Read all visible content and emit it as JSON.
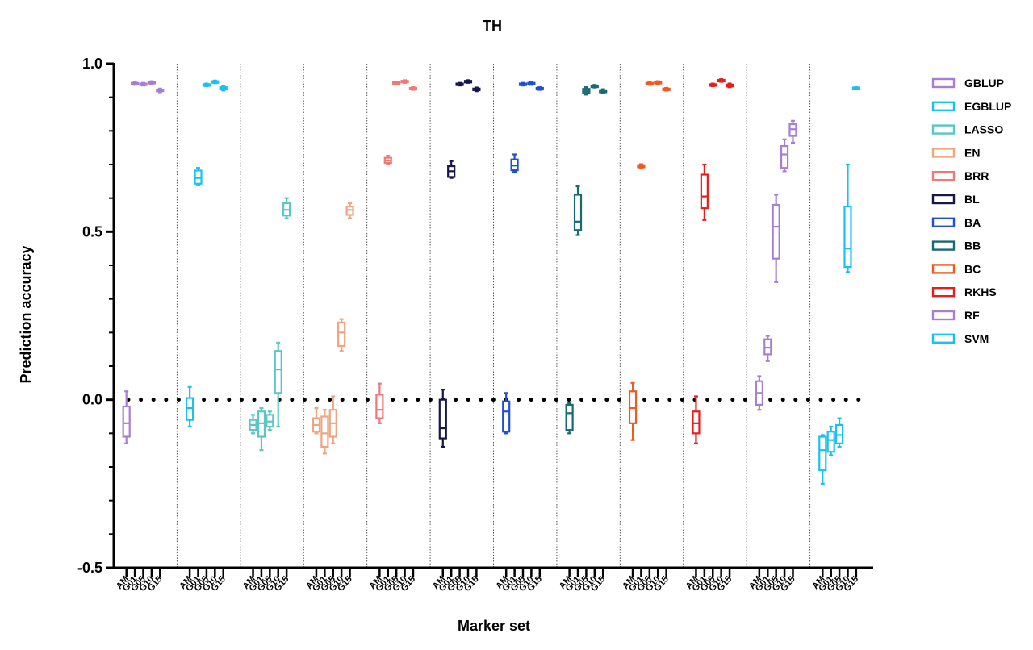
{
  "chart_data": {
    "type": "box",
    "title": "TH",
    "xlabel": "Marker set",
    "ylabel": "Prediction accuracy",
    "ylim": [
      -0.5,
      1.0
    ],
    "yticks": [
      "-0.5",
      "0.0",
      "0.5",
      "1.0"
    ],
    "ytick_values": [
      -0.5,
      0.0,
      0.5,
      1.0
    ],
    "reference_line": 0.0,
    "legend_position": "right",
    "marker_sets": [
      "AM",
      "G01",
      "G05",
      "G10",
      "G15"
    ],
    "series": [
      {
        "name": "GBLUP",
        "color": "#a67fd4",
        "boxes": [
          {
            "min": -0.13,
            "q1": -0.11,
            "median": -0.07,
            "q3": -0.02,
            "max": 0.025
          },
          {
            "min": 0.937,
            "q1": 0.939,
            "median": 0.941,
            "q3": 0.943,
            "max": 0.945
          },
          {
            "min": 0.935,
            "q1": 0.937,
            "median": 0.939,
            "q3": 0.941,
            "max": 0.943
          },
          {
            "min": 0.94,
            "q1": 0.942,
            "median": 0.944,
            "q3": 0.946,
            "max": 0.948
          },
          {
            "min": 0.915,
            "q1": 0.918,
            "median": 0.92,
            "q3": 0.923,
            "max": 0.926
          }
        ]
      },
      {
        "name": "EGBLUP",
        "color": "#19c1f0",
        "boxes": [
          {
            "min": -0.08,
            "q1": -0.06,
            "median": -0.025,
            "q3": 0.005,
            "max": 0.038
          },
          {
            "min": 0.638,
            "q1": 0.643,
            "median": 0.66,
            "q3": 0.682,
            "max": 0.69
          },
          {
            "min": 0.933,
            "q1": 0.935,
            "median": 0.937,
            "q3": 0.939,
            "max": 0.941
          },
          {
            "min": 0.942,
            "q1": 0.944,
            "median": 0.946,
            "q3": 0.948,
            "max": 0.95
          },
          {
            "min": 0.92,
            "q1": 0.923,
            "median": 0.926,
            "q3": 0.93,
            "max": 0.933
          }
        ]
      },
      {
        "name": "LASSO",
        "color": "#5cc6c6",
        "boxes": [
          {
            "min": -0.1,
            "q1": -0.09,
            "median": -0.075,
            "q3": -0.06,
            "max": -0.045
          },
          {
            "min": -0.15,
            "q1": -0.11,
            "median": -0.07,
            "q3": -0.035,
            "max": -0.025
          },
          {
            "min": -0.09,
            "q1": -0.08,
            "median": -0.065,
            "q3": -0.045,
            "max": -0.035
          },
          {
            "min": -0.08,
            "q1": 0.02,
            "median": 0.09,
            "q3": 0.145,
            "max": 0.17
          },
          {
            "min": 0.54,
            "q1": 0.548,
            "median": 0.565,
            "q3": 0.585,
            "max": 0.6
          }
        ]
      },
      {
        "name": "EN",
        "color": "#f0a582",
        "boxes": [
          {
            "min": -0.1,
            "q1": -0.095,
            "median": -0.075,
            "q3": -0.055,
            "max": -0.025
          },
          {
            "min": -0.16,
            "q1": -0.14,
            "median": -0.1,
            "q3": -0.05,
            "max": -0.03
          },
          {
            "min": -0.13,
            "q1": -0.11,
            "median": -0.07,
            "q3": -0.03,
            "max": 0.01
          },
          {
            "min": 0.145,
            "q1": 0.16,
            "median": 0.2,
            "q3": 0.23,
            "max": 0.24
          },
          {
            "min": 0.54,
            "q1": 0.55,
            "median": 0.565,
            "q3": 0.575,
            "max": 0.585
          }
        ]
      },
      {
        "name": "BRR",
        "color": "#f07878",
        "boxes": [
          {
            "min": -0.07,
            "q1": -0.055,
            "median": -0.03,
            "q3": 0.015,
            "max": 0.048
          },
          {
            "min": 0.7,
            "q1": 0.705,
            "median": 0.712,
            "q3": 0.72,
            "max": 0.726
          },
          {
            "min": 0.939,
            "q1": 0.941,
            "median": 0.943,
            "q3": 0.945,
            "max": 0.947
          },
          {
            "min": 0.943,
            "q1": 0.945,
            "median": 0.947,
            "q3": 0.949,
            "max": 0.951
          },
          {
            "min": 0.922,
            "q1": 0.924,
            "median": 0.926,
            "q3": 0.928,
            "max": 0.93
          }
        ]
      },
      {
        "name": "BL",
        "color": "#16164a",
        "boxes": [
          {
            "min": -0.14,
            "q1": -0.115,
            "median": -0.085,
            "q3": 0.0,
            "max": 0.03
          },
          {
            "min": 0.66,
            "q1": 0.663,
            "median": 0.68,
            "q3": 0.695,
            "max": 0.71
          },
          {
            "min": 0.935,
            "q1": 0.937,
            "median": 0.939,
            "q3": 0.941,
            "max": 0.943
          },
          {
            "min": 0.943,
            "q1": 0.945,
            "median": 0.947,
            "q3": 0.949,
            "max": 0.951
          },
          {
            "min": 0.918,
            "q1": 0.921,
            "median": 0.923,
            "q3": 0.926,
            "max": 0.929
          }
        ]
      },
      {
        "name": "BA",
        "color": "#1f4fd6",
        "boxes": [
          {
            "min": -0.1,
            "q1": -0.095,
            "median": -0.035,
            "q3": -0.005,
            "max": 0.02
          },
          {
            "min": 0.678,
            "q1": 0.683,
            "median": 0.697,
            "q3": 0.715,
            "max": 0.73
          },
          {
            "min": 0.935,
            "q1": 0.937,
            "median": 0.939,
            "q3": 0.941,
            "max": 0.943
          },
          {
            "min": 0.937,
            "q1": 0.939,
            "median": 0.941,
            "q3": 0.943,
            "max": 0.946
          },
          {
            "min": 0.922,
            "q1": 0.924,
            "median": 0.926,
            "q3": 0.928,
            "max": 0.93
          }
        ]
      },
      {
        "name": "BB",
        "color": "#1a6b70",
        "boxes": [
          {
            "min": -0.1,
            "q1": -0.09,
            "median": -0.04,
            "q3": -0.015,
            "max": -0.01
          },
          {
            "min": 0.49,
            "q1": 0.505,
            "median": 0.53,
            "q3": 0.61,
            "max": 0.635
          },
          {
            "min": 0.908,
            "q1": 0.913,
            "median": 0.918,
            "q3": 0.925,
            "max": 0.93
          },
          {
            "min": 0.929,
            "q1": 0.931,
            "median": 0.933,
            "q3": 0.935,
            "max": 0.937
          },
          {
            "min": 0.912,
            "q1": 0.915,
            "median": 0.918,
            "q3": 0.921,
            "max": 0.924
          }
        ]
      },
      {
        "name": "BC",
        "color": "#f05a1e",
        "boxes": [
          {
            "min": -0.12,
            "q1": -0.07,
            "median": -0.025,
            "q3": 0.025,
            "max": 0.05
          },
          {
            "min": 0.69,
            "q1": 0.692,
            "median": 0.695,
            "q3": 0.698,
            "max": 0.701
          },
          {
            "min": 0.937,
            "q1": 0.939,
            "median": 0.941,
            "q3": 0.943,
            "max": 0.945
          },
          {
            "min": 0.94,
            "q1": 0.942,
            "median": 0.944,
            "q3": 0.946,
            "max": 0.948
          },
          {
            "min": 0.92,
            "q1": 0.922,
            "median": 0.924,
            "q3": 0.926,
            "max": 0.928
          }
        ]
      },
      {
        "name": "RKHS",
        "color": "#e81c1c",
        "boxes": [
          {
            "min": -0.13,
            "q1": -0.1,
            "median": -0.07,
            "q3": -0.035,
            "max": 0.01
          },
          {
            "min": 0.535,
            "q1": 0.57,
            "median": 0.605,
            "q3": 0.67,
            "max": 0.7
          },
          {
            "min": 0.933,
            "q1": 0.935,
            "median": 0.937,
            "q3": 0.939,
            "max": 0.941
          },
          {
            "min": 0.946,
            "q1": 0.948,
            "median": 0.95,
            "q3": 0.952,
            "max": 0.954
          },
          {
            "min": 0.93,
            "q1": 0.932,
            "median": 0.935,
            "q3": 0.938,
            "max": 0.941
          }
        ]
      },
      {
        "name": "RF",
        "color": "#a67fd4",
        "boxes": [
          {
            "min": -0.03,
            "q1": -0.015,
            "median": 0.02,
            "q3": 0.055,
            "max": 0.07
          },
          {
            "min": 0.115,
            "q1": 0.135,
            "median": 0.155,
            "q3": 0.18,
            "max": 0.19
          },
          {
            "min": 0.35,
            "q1": 0.42,
            "median": 0.515,
            "q3": 0.58,
            "max": 0.61
          },
          {
            "min": 0.68,
            "q1": 0.69,
            "median": 0.73,
            "q3": 0.755,
            "max": 0.775
          },
          {
            "min": 0.765,
            "q1": 0.785,
            "median": 0.805,
            "q3": 0.82,
            "max": 0.83
          }
        ]
      },
      {
        "name": "SVM",
        "color": "#19c1f0",
        "boxes": [
          {
            "min": -0.25,
            "q1": -0.21,
            "median": -0.15,
            "q3": -0.11,
            "max": -0.105
          },
          {
            "min": -0.165,
            "q1": -0.155,
            "median": -0.12,
            "q3": -0.095,
            "max": -0.08
          },
          {
            "min": -0.14,
            "q1": -0.13,
            "median": -0.105,
            "q3": -0.075,
            "max": -0.055
          },
          {
            "min": 0.38,
            "q1": 0.395,
            "median": 0.45,
            "q3": 0.575,
            "max": 0.7
          },
          {
            "min": 0.926,
            "q1": 0.927,
            "median": 0.928,
            "q3": 0.929,
            "max": 0.93
          }
        ]
      }
    ]
  }
}
